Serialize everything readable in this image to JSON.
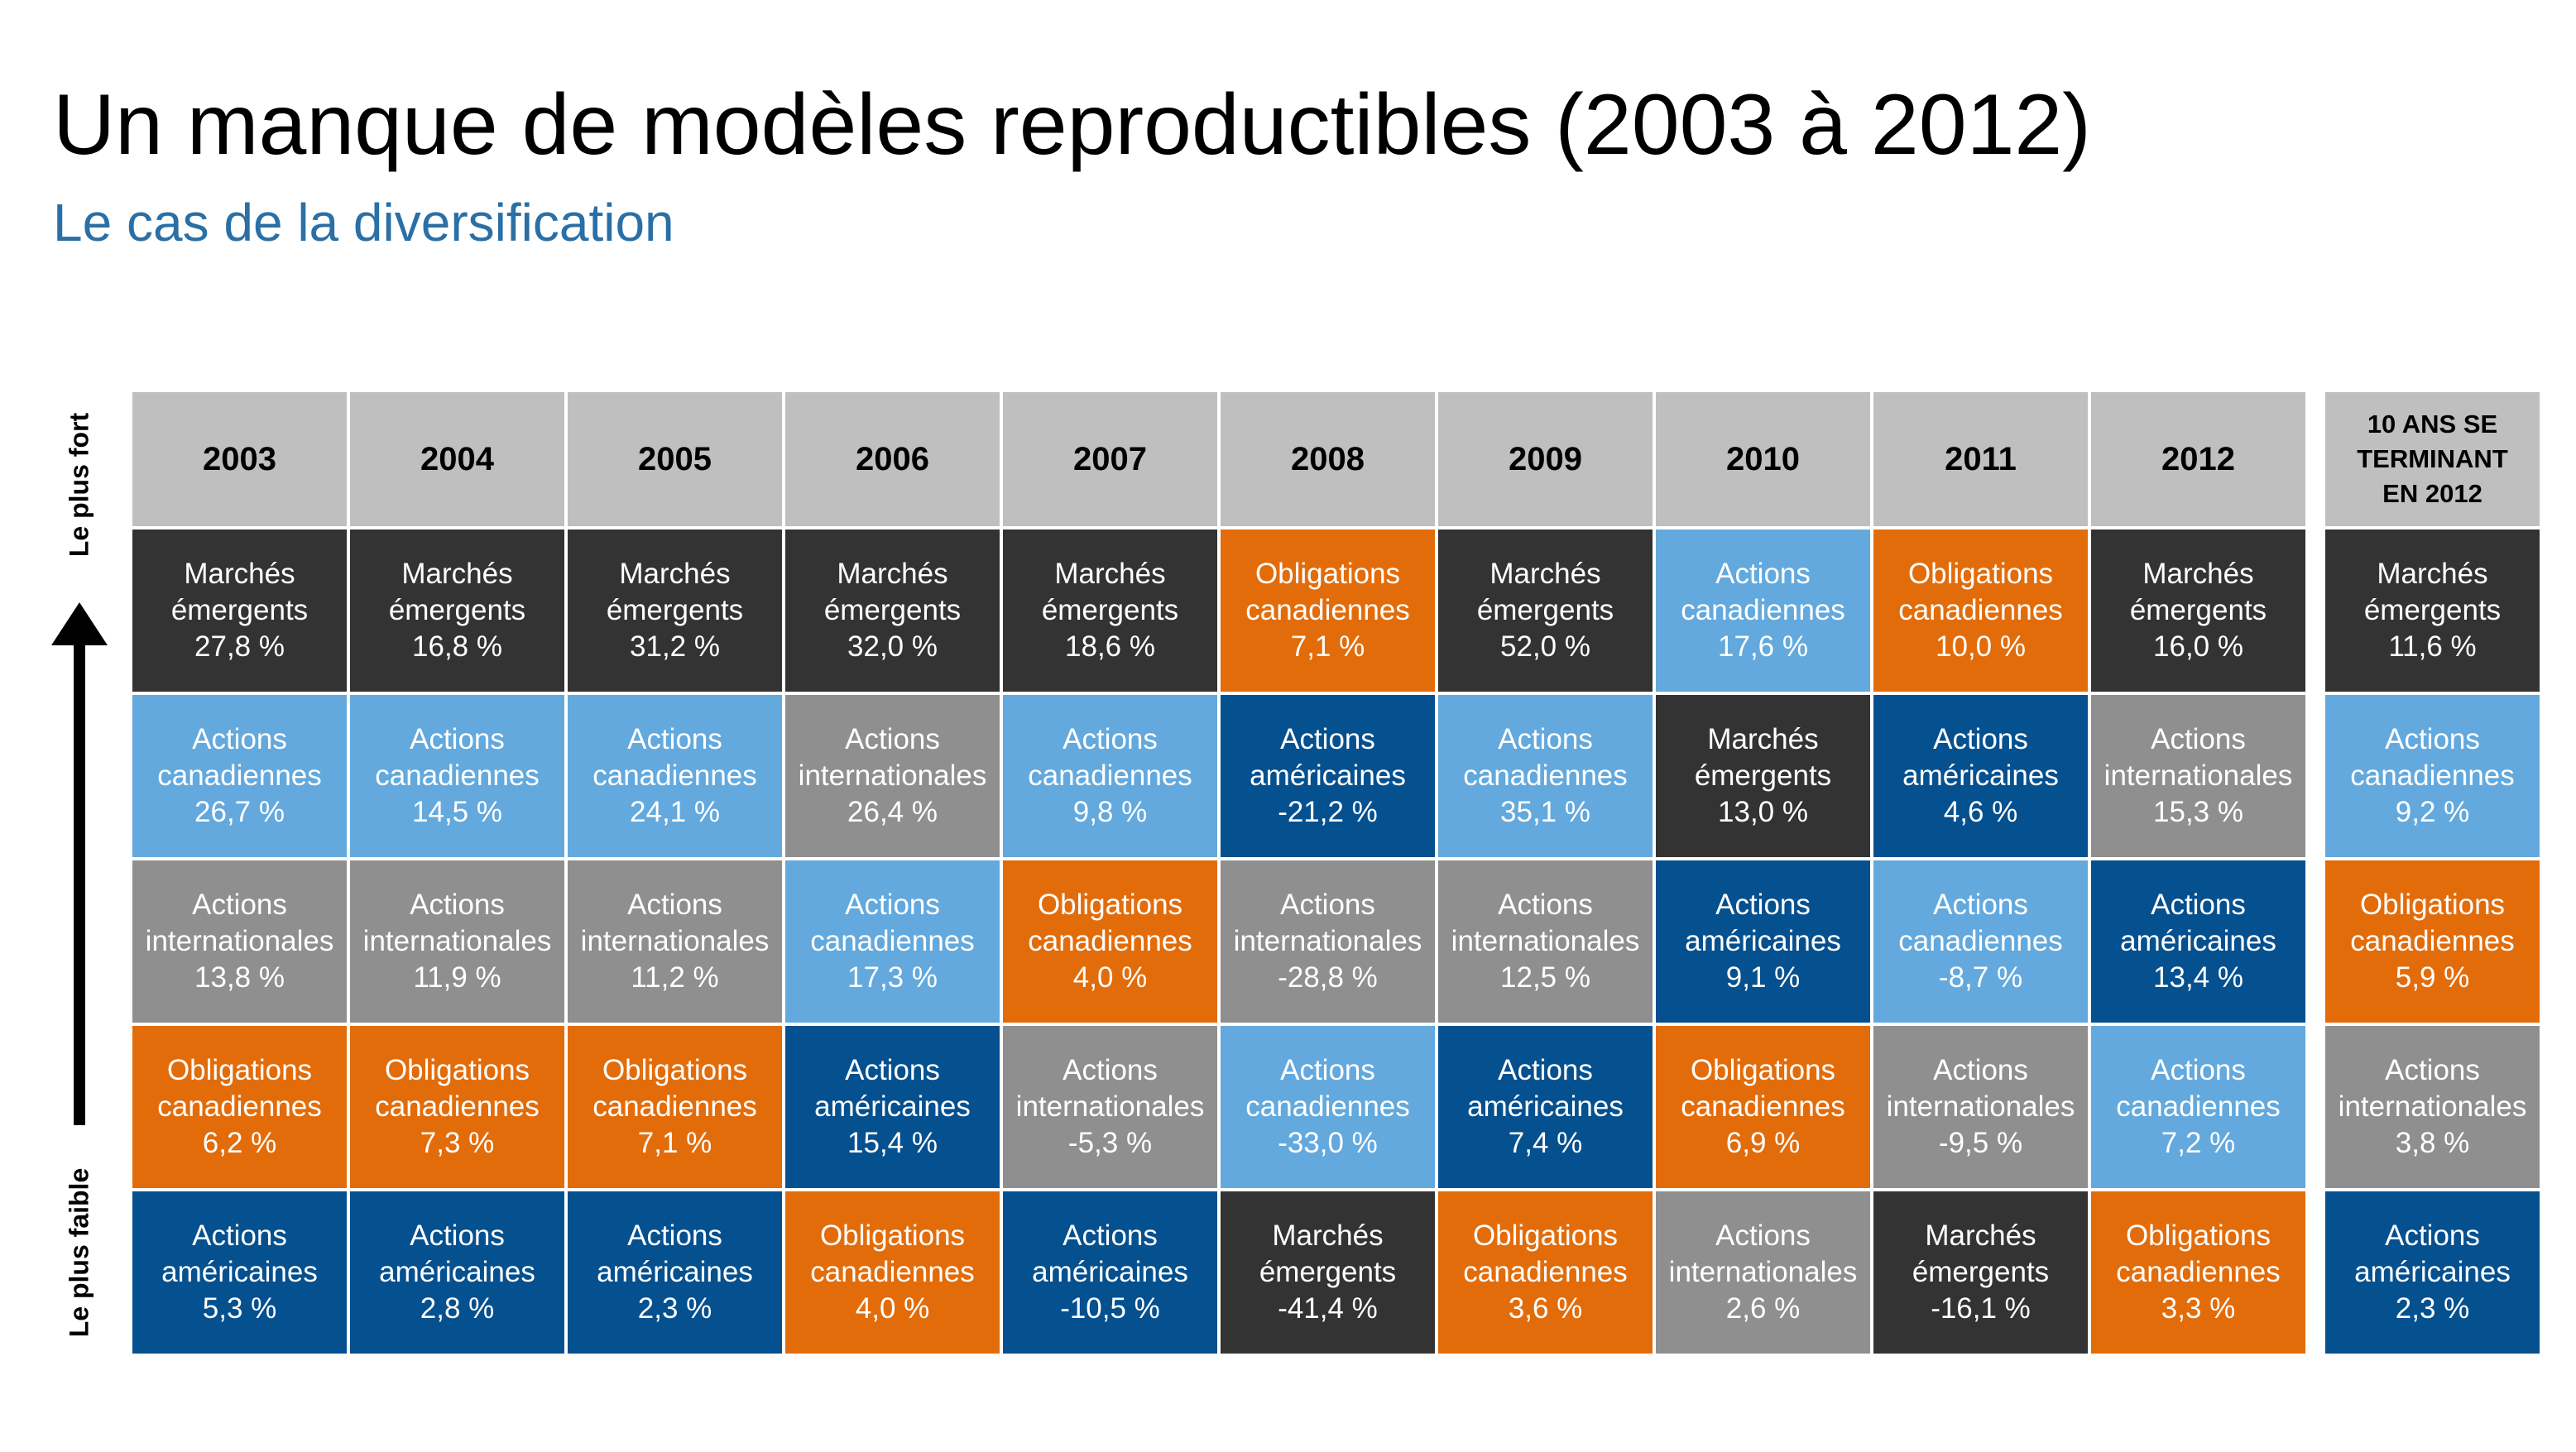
{
  "header": {
    "title": "Un manque de modèles reproductibles (2003 à 2012)",
    "subtitle": "Le cas de la diversification"
  },
  "axis": {
    "top": "Le plus fort",
    "bottom": "Le plus faible"
  },
  "asset_colors": {
    "Marchés émergents": "#333333",
    "Actions canadiennes": "#63a9dd",
    "Actions internationales": "#8f8f8f",
    "Obligations canadiennes": "#e36c0a",
    "Actions américaines": "#05508f"
  },
  "table": {
    "columns": [
      {
        "header": "2003",
        "cells": [
          {
            "asset": "Marchés émergents",
            "value": "27,8 %"
          },
          {
            "asset": "Actions canadiennes",
            "value": "26,7 %"
          },
          {
            "asset": "Actions internationales",
            "value": "13,8 %"
          },
          {
            "asset": "Obligations canadiennes",
            "value": "6,2 %"
          },
          {
            "asset": "Actions américaines",
            "value": "5,3 %"
          }
        ]
      },
      {
        "header": "2004",
        "cells": [
          {
            "asset": "Marchés émergents",
            "value": "16,8 %"
          },
          {
            "asset": "Actions canadiennes",
            "value": "14,5 %"
          },
          {
            "asset": "Actions internationales",
            "value": "11,9 %"
          },
          {
            "asset": "Obligations canadiennes",
            "value": "7,3 %"
          },
          {
            "asset": "Actions américaines",
            "value": "2,8 %"
          }
        ]
      },
      {
        "header": "2005",
        "cells": [
          {
            "asset": "Marchés émergents",
            "value": "31,2 %"
          },
          {
            "asset": "Actions canadiennes",
            "value": "24,1 %"
          },
          {
            "asset": "Actions internationales",
            "value": "11,2 %"
          },
          {
            "asset": "Obligations canadiennes",
            "value": "7,1 %"
          },
          {
            "asset": "Actions américaines",
            "value": "2,3 %"
          }
        ]
      },
      {
        "header": "2006",
        "cells": [
          {
            "asset": "Marchés émergents",
            "value": "32,0 %"
          },
          {
            "asset": "Actions internationales",
            "value": "26,4 %"
          },
          {
            "asset": "Actions canadiennes",
            "value": "17,3 %"
          },
          {
            "asset": "Actions américaines",
            "value": "15,4 %"
          },
          {
            "asset": "Obligations canadiennes",
            "value": "4,0 %"
          }
        ]
      },
      {
        "header": "2007",
        "cells": [
          {
            "asset": "Marchés émergents",
            "value": "18,6 %"
          },
          {
            "asset": "Actions canadiennes",
            "value": "9,8 %"
          },
          {
            "asset": "Obligations canadiennes",
            "value": "4,0 %"
          },
          {
            "asset": "Actions internationales",
            "value": "-5,3 %"
          },
          {
            "asset": "Actions américaines",
            "value": "-10,5 %"
          }
        ]
      },
      {
        "header": "2008",
        "cells": [
          {
            "asset": "Obligations canadiennes",
            "value": "7,1 %"
          },
          {
            "asset": "Actions américaines",
            "value": "-21,2 %"
          },
          {
            "asset": "Actions internationales",
            "value": "-28,8 %"
          },
          {
            "asset": "Actions canadiennes",
            "value": "-33,0 %"
          },
          {
            "asset": "Marchés émergents",
            "value": "-41,4 %"
          }
        ]
      },
      {
        "header": "2009",
        "cells": [
          {
            "asset": "Marchés émergents",
            "value": "52,0 %"
          },
          {
            "asset": "Actions canadiennes",
            "value": "35,1 %"
          },
          {
            "asset": "Actions internationales",
            "value": "12,5 %"
          },
          {
            "asset": "Actions américaines",
            "value": "7,4 %"
          },
          {
            "asset": "Obligations canadiennes",
            "value": "3,6 %"
          }
        ]
      },
      {
        "header": "2010",
        "cells": [
          {
            "asset": "Actions canadiennes",
            "value": "17,6 %"
          },
          {
            "asset": "Marchés émergents",
            "value": "13,0 %"
          },
          {
            "asset": "Actions américaines",
            "value": "9,1 %"
          },
          {
            "asset": "Obligations canadiennes",
            "value": "6,9 %"
          },
          {
            "asset": "Actions internationales",
            "value": "2,6 %"
          }
        ]
      },
      {
        "header": "2011",
        "cells": [
          {
            "asset": "Obligations canadiennes",
            "value": "10,0 %"
          },
          {
            "asset": "Actions américaines",
            "value": "4,6 %"
          },
          {
            "asset": "Actions canadiennes",
            "value": "-8,7 %"
          },
          {
            "asset": "Actions internationales",
            "value": "-9,5 %"
          },
          {
            "asset": "Marchés émergents",
            "value": "-16,1 %"
          }
        ]
      },
      {
        "header": "2012",
        "cells": [
          {
            "asset": "Marchés émergents",
            "value": "16,0 %"
          },
          {
            "asset": "Actions internationales",
            "value": "15,3 %"
          },
          {
            "asset": "Actions américaines",
            "value": "13,4 %"
          },
          {
            "asset": "Actions canadiennes",
            "value": "7,2 %"
          },
          {
            "asset": "Obligations canadiennes",
            "value": "3,3 %"
          }
        ]
      },
      {
        "header": "10 ANS SE TERMINANT EN 2012",
        "cells": [
          {
            "asset": "Marchés émergents",
            "value": "11,6 %"
          },
          {
            "asset": "Actions canadiennes",
            "value": "9,2 %"
          },
          {
            "asset": "Obligations canadiennes",
            "value": "5,9 %"
          },
          {
            "asset": "Actions internationales",
            "value": "3,8 %"
          },
          {
            "asset": "Actions américaines",
            "value": "2,3 %"
          }
        ]
      }
    ]
  }
}
